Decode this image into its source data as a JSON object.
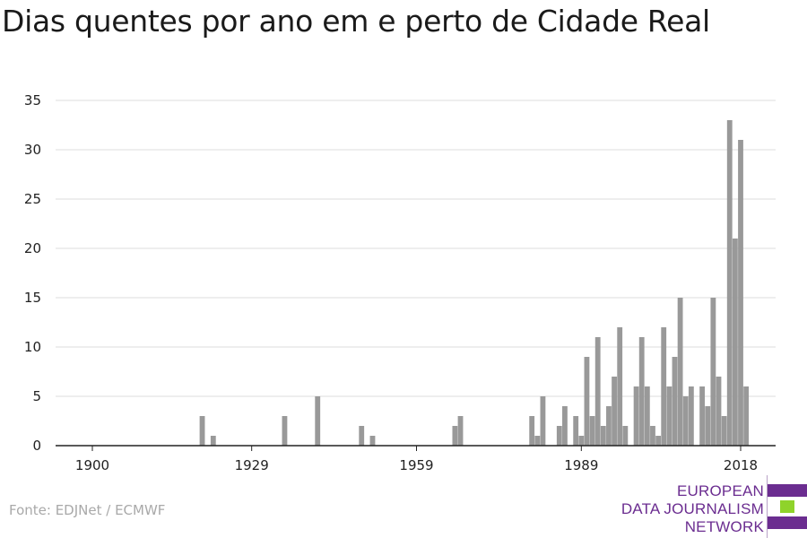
{
  "title": "Dias quentes por ano em e perto de Cidade Real",
  "source": "Fonte: EDJNet / ECMWF",
  "logo": {
    "line1": "EUROPEAN",
    "line2": "DATA JOURNALISM",
    "line3": "NETWORK"
  },
  "colors": {
    "bar": "#999999",
    "grid": "#dddddd",
    "axis": "#222222",
    "logo_purple": "#6b2d90",
    "logo_green": "#8fd32b"
  },
  "chart_data": {
    "type": "bar",
    "title": "Dias quentes por ano em e perto de Cidade Real",
    "xlabel": "",
    "ylabel": "",
    "xlim": [
      1900,
      2018
    ],
    "ylim": [
      0,
      35
    ],
    "yticks": [
      0,
      5,
      10,
      15,
      20,
      25,
      30,
      35
    ],
    "xticks": [
      1900,
      1929,
      1959,
      1989,
      2018
    ],
    "grid": true,
    "points": [
      {
        "year": 1920,
        "value": 3
      },
      {
        "year": 1922,
        "value": 1
      },
      {
        "year": 1935,
        "value": 3
      },
      {
        "year": 1941,
        "value": 5
      },
      {
        "year": 1949,
        "value": 2
      },
      {
        "year": 1951,
        "value": 1
      },
      {
        "year": 1966,
        "value": 2
      },
      {
        "year": 1967,
        "value": 3
      },
      {
        "year": 1980,
        "value": 3
      },
      {
        "year": 1981,
        "value": 1
      },
      {
        "year": 1982,
        "value": 5
      },
      {
        "year": 1985,
        "value": 2
      },
      {
        "year": 1986,
        "value": 4
      },
      {
        "year": 1988,
        "value": 3
      },
      {
        "year": 1989,
        "value": 1
      },
      {
        "year": 1990,
        "value": 9
      },
      {
        "year": 1991,
        "value": 3
      },
      {
        "year": 1992,
        "value": 11
      },
      {
        "year": 1993,
        "value": 2
      },
      {
        "year": 1994,
        "value": 4
      },
      {
        "year": 1995,
        "value": 7
      },
      {
        "year": 1996,
        "value": 12
      },
      {
        "year": 1997,
        "value": 2
      },
      {
        "year": 1999,
        "value": 6
      },
      {
        "year": 2000,
        "value": 11
      },
      {
        "year": 2001,
        "value": 6
      },
      {
        "year": 2002,
        "value": 2
      },
      {
        "year": 2003,
        "value": 1
      },
      {
        "year": 2004,
        "value": 12
      },
      {
        "year": 2005,
        "value": 6
      },
      {
        "year": 2006,
        "value": 9
      },
      {
        "year": 2007,
        "value": 15
      },
      {
        "year": 2008,
        "value": 5
      },
      {
        "year": 2009,
        "value": 6
      },
      {
        "year": 2011,
        "value": 6
      },
      {
        "year": 2012,
        "value": 4
      },
      {
        "year": 2013,
        "value": 15
      },
      {
        "year": 2014,
        "value": 7
      },
      {
        "year": 2015,
        "value": 3
      },
      {
        "year": 2016,
        "value": 33
      },
      {
        "year": 2017,
        "value": 21
      },
      {
        "year": 2018,
        "value": 31
      },
      {
        "year": 2019,
        "value": 6
      }
    ]
  }
}
